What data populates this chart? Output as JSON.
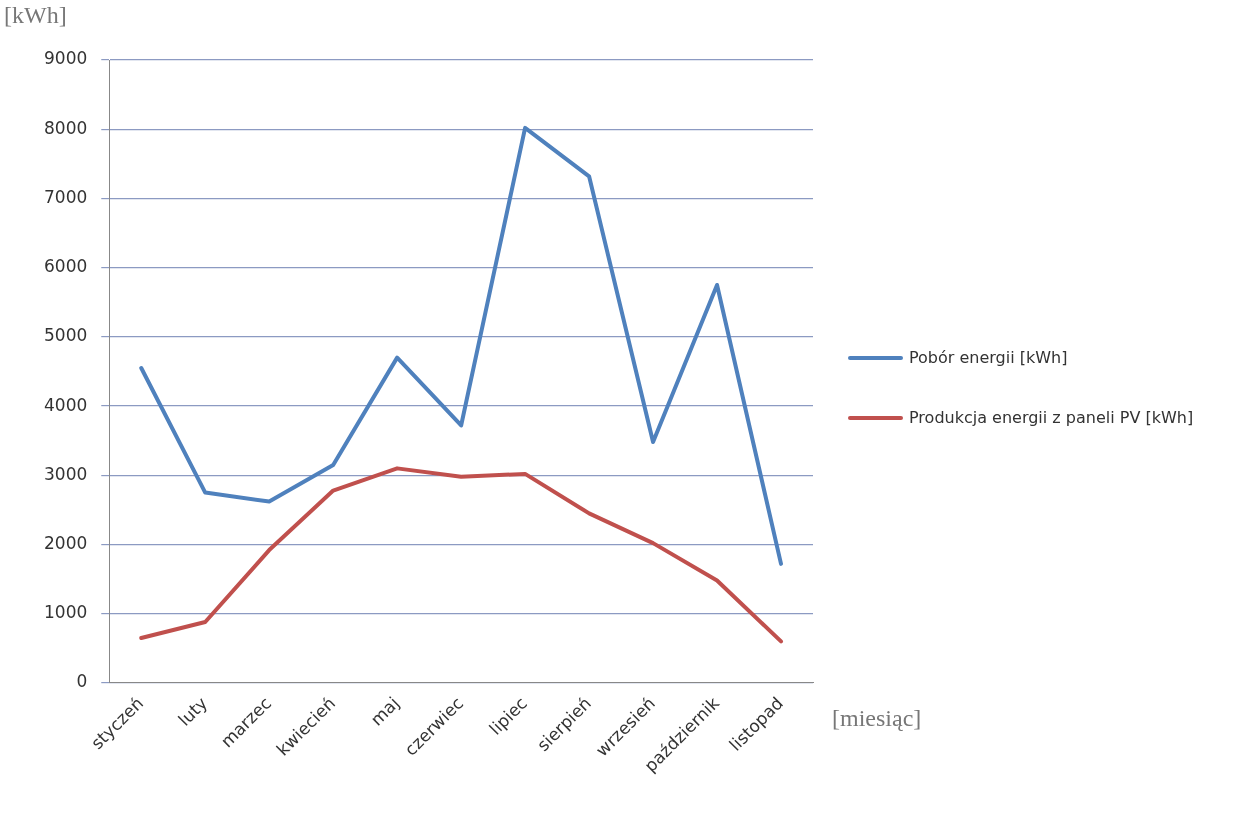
{
  "chart_data": {
    "type": "line",
    "xlabel": "[miesiąc]",
    "ylabel": "[kWh]",
    "categories": [
      "styczeń",
      "luty",
      "marzec",
      "kwiecień",
      "maj",
      "czerwiec",
      "lipiec",
      "sierpień",
      "wrzesień",
      "październik",
      "listopad"
    ],
    "series": [
      {
        "name": "Pobór energii [kWh]",
        "color": "#4f81bd",
        "values": [
          4550,
          2750,
          2620,
          3150,
          4700,
          3720,
          8020,
          7320,
          3480,
          5750,
          1720
        ]
      },
      {
        "name": "Produkcja energii z paneli PV [kWh]",
        "color": "#c0504d",
        "values": [
          650,
          880,
          1920,
          2780,
          3100,
          2980,
          3020,
          2450,
          2020,
          1480,
          600
        ]
      }
    ],
    "ylim": [
      0,
      9000
    ],
    "yticks": [
      0,
      1000,
      2000,
      3000,
      4000,
      5000,
      6000,
      7000,
      8000,
      9000
    ],
    "grid": "y",
    "legend": "right",
    "marker": "none",
    "line_style": "solid"
  }
}
